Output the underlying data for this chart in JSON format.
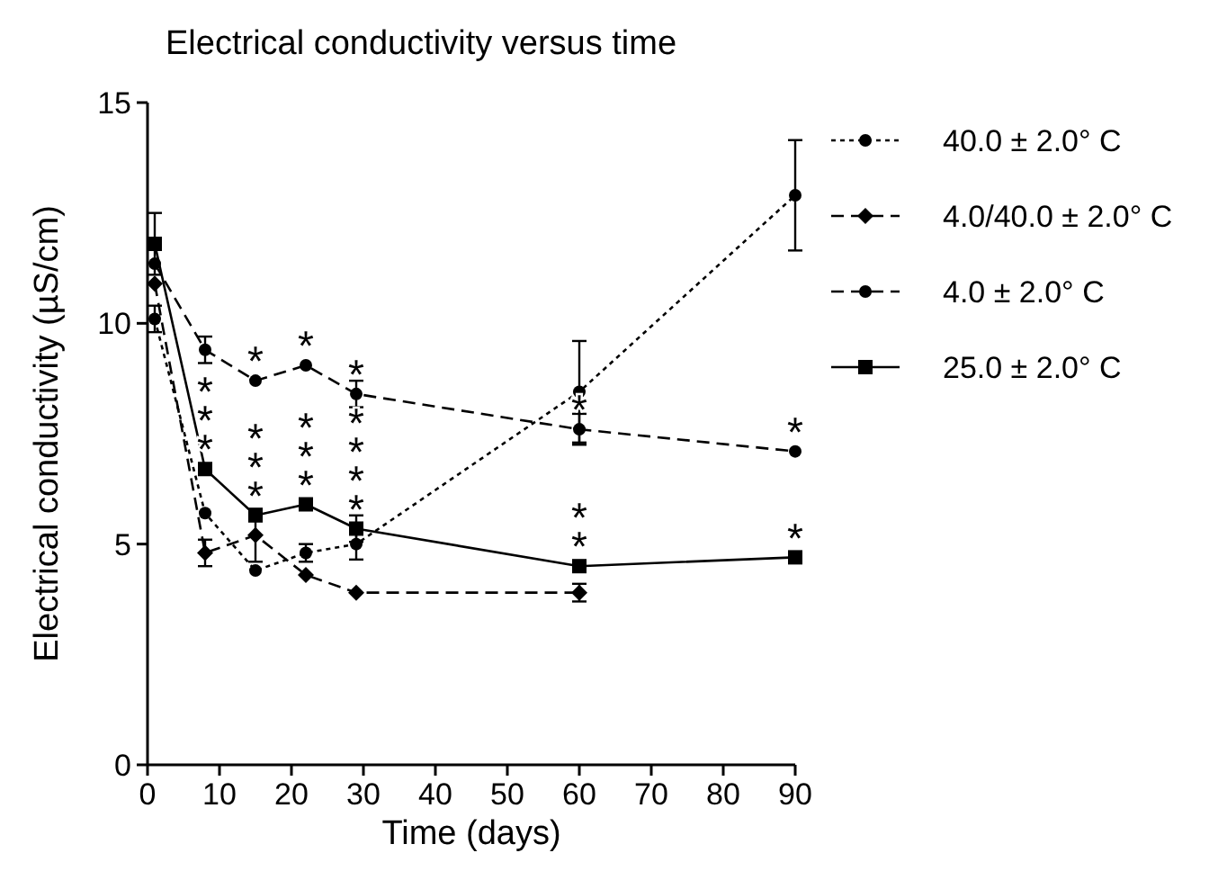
{
  "chart_data": {
    "type": "line",
    "title": "Electrical conductivity versus time",
    "xlabel": "Time (days)",
    "ylabel": "Electrical conductivity (µS/cm)",
    "x": [
      1,
      8,
      15,
      22,
      29,
      60,
      90
    ],
    "series": [
      {
        "name": "40.0  ± 2.0° C",
        "color": "#000000",
        "marker": "circle",
        "line_style": "dotted",
        "values": [
          10.1,
          5.7,
          4.4,
          4.8,
          5.0,
          8.45,
          12.9
        ],
        "errors": [
          0.3,
          null,
          null,
          0.2,
          0.35,
          1.15,
          1.25
        ]
      },
      {
        "name": "4.0/40.0  ± 2.0° C",
        "color": "#000000",
        "marker": "diamond",
        "line_style": "dashed",
        "values": [
          10.9,
          4.8,
          5.2,
          4.3,
          3.9,
          3.9,
          null
        ],
        "errors": [
          null,
          0.3,
          0.6,
          null,
          null,
          0.2,
          null
        ]
      },
      {
        "name": "4.0  ± 2.0° C",
        "color": "#000000",
        "marker": "circle",
        "line_style": "dashed",
        "values": [
          11.35,
          9.4,
          8.7,
          9.05,
          8.4,
          7.6,
          7.1
        ],
        "errors": [
          null,
          0.3,
          null,
          null,
          0.3,
          0.35,
          null
        ]
      },
      {
        "name": "25.0  ± 2.0° C",
        "color": "#000000",
        "marker": "square",
        "line_style": "solid",
        "values": [
          11.8,
          6.7,
          5.65,
          5.9,
          5.35,
          4.5,
          4.7
        ],
        "errors": [
          0.7,
          null,
          null,
          null,
          0.3,
          null,
          null
        ]
      }
    ],
    "xlim": [
      0,
      90
    ],
    "xticks": [
      0,
      10,
      20,
      30,
      40,
      50,
      60,
      70,
      80,
      90
    ],
    "ylim": [
      0,
      15
    ],
    "yticks": [
      0,
      5,
      10,
      15
    ],
    "grid": false,
    "legend": "right",
    "annotations": [
      {
        "text": "***",
        "x": 8,
        "y": 6.7
      },
      {
        "text": "*",
        "x": 15,
        "y": 8.7
      },
      {
        "text": "***",
        "x": 15,
        "y": 5.65
      },
      {
        "text": "*",
        "x": 22,
        "y": 9.05
      },
      {
        "text": "***",
        "x": 22,
        "y": 5.9
      },
      {
        "text": "*",
        "x": 29,
        "y": 8.4
      },
      {
        "text": "****",
        "x": 29,
        "y": 5.35
      },
      {
        "text": "*",
        "x": 60,
        "y": 7.6
      },
      {
        "text": "**",
        "x": 60,
        "y": 4.5
      },
      {
        "text": "*",
        "x": 90,
        "y": 7.1
      },
      {
        "text": "*",
        "x": 90,
        "y": 4.7
      }
    ]
  }
}
